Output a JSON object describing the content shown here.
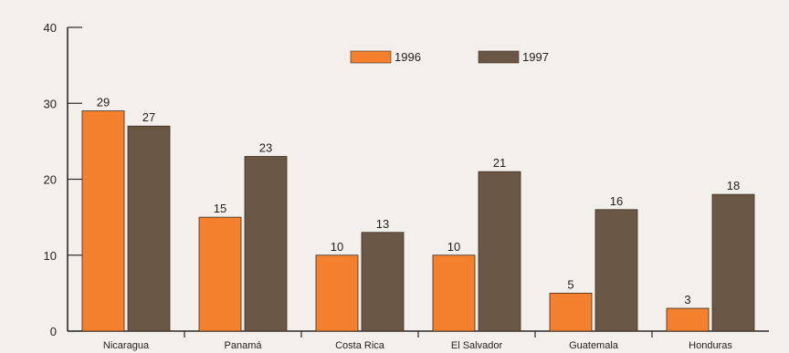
{
  "chart_data": {
    "type": "bar",
    "categories": [
      "Nicaragua",
      "Panamá",
      "Costa Rica",
      "El Salvador",
      "Guatemala",
      "Honduras"
    ],
    "series": [
      {
        "name": "1996",
        "values": [
          29,
          15,
          10,
          10,
          5,
          3
        ],
        "color": "#f47f2d"
      },
      {
        "name": "1997",
        "values": [
          27,
          23,
          13,
          21,
          16,
          18
        ],
        "color": "#6a5644"
      }
    ],
    "ylim": [
      0,
      40
    ],
    "yticks": [
      0,
      10,
      20,
      30,
      40
    ],
    "grid": false,
    "legend_position": "top-center",
    "title": "",
    "xlabel": "",
    "ylabel": ""
  }
}
